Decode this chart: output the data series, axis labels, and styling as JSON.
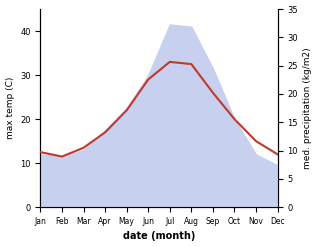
{
  "months": [
    "Jan",
    "Feb",
    "Mar",
    "Apr",
    "May",
    "Jun",
    "Jul",
    "Aug",
    "Sep",
    "Oct",
    "Nov",
    "Dec"
  ],
  "temp": [
    12.5,
    11.5,
    13.5,
    17.0,
    22.0,
    29.0,
    33.0,
    32.5,
    26.0,
    20.0,
    15.0,
    12.0
  ],
  "precip": [
    12.0,
    11.5,
    13.0,
    17.5,
    22.5,
    30.0,
    41.5,
    41.0,
    31.5,
    20.0,
    12.0,
    9.5
  ],
  "temp_color": "#c0392b",
  "precip_fill_color": "#c8d0f0",
  "temp_ylim": [
    0,
    45
  ],
  "precip_ylim": [
    0,
    35
  ],
  "temp_yticks": [
    0,
    10,
    20,
    30,
    40
  ],
  "precip_yticks": [
    0,
    5,
    10,
    15,
    20,
    25,
    30,
    35
  ],
  "xlabel": "date (month)",
  "ylabel_left": "max temp (C)",
  "ylabel_right": "med. precipitation (kg/m2)",
  "background_color": "#ffffff"
}
